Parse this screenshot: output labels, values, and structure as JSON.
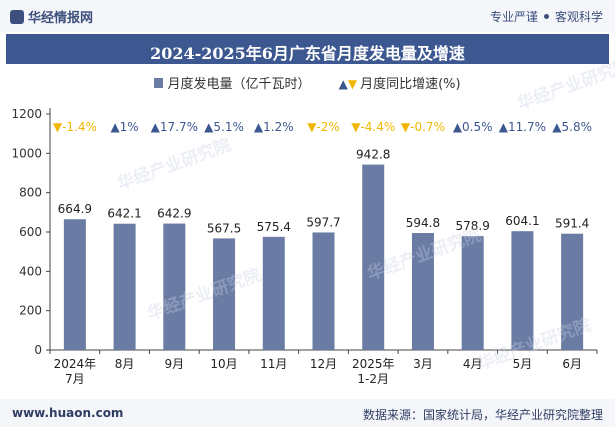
{
  "header": {
    "brand": "华经情报网",
    "tagline_left": "专业严谨",
    "tagline_right": "客观科学"
  },
  "footer": {
    "site": "www.huaon.com",
    "source": "数据来源：国家统计局，华经产业研究院整理"
  },
  "colors": {
    "bar": "#6a7ba4",
    "up": "#3d5890",
    "down": "#f2b705",
    "title_bg": "#3d5890"
  },
  "chart_data": {
    "type": "bar",
    "title": "2024-2025年6月广东省月度发电量及增速",
    "categories": [
      "2024年\n7月",
      "8月",
      "9月",
      "10月",
      "11月",
      "12月",
      "2025年\n1-2月",
      "3月",
      "4月",
      "5月",
      "6月"
    ],
    "series": [
      {
        "name": "月度发电量（亿千瓦时）",
        "values": [
          664.9,
          642.1,
          642.9,
          567.5,
          575.4,
          597.7,
          942.8,
          594.8,
          578.9,
          604.1,
          591.4
        ]
      },
      {
        "name": "月度同比增速(%)",
        "values": [
          -1.4,
          1,
          17.7,
          5.1,
          1.2,
          -2,
          -4.4,
          -0.7,
          0.5,
          11.7,
          5.8
        ],
        "labels": [
          "-1.4%",
          "1%",
          "17.7%",
          "5.1%",
          "1.2%",
          "-2%",
          "-4.4%",
          "-0.7%",
          "0.5%",
          "11.7%",
          "5.8%"
        ]
      }
    ],
    "bar_labels": [
      "664.9",
      "642.1",
      "642.9",
      "567.5",
      "575.4",
      "597.7",
      "942.8",
      "594.8",
      "578.9",
      "604.1",
      "591.4"
    ],
    "yticks": [
      "0",
      "200",
      "400",
      "600",
      "800",
      "1000",
      "1200"
    ],
    "ylim": [
      0,
      1200
    ],
    "legend_position": "top-center",
    "grid": false
  },
  "watermark": "华经产业研究院"
}
